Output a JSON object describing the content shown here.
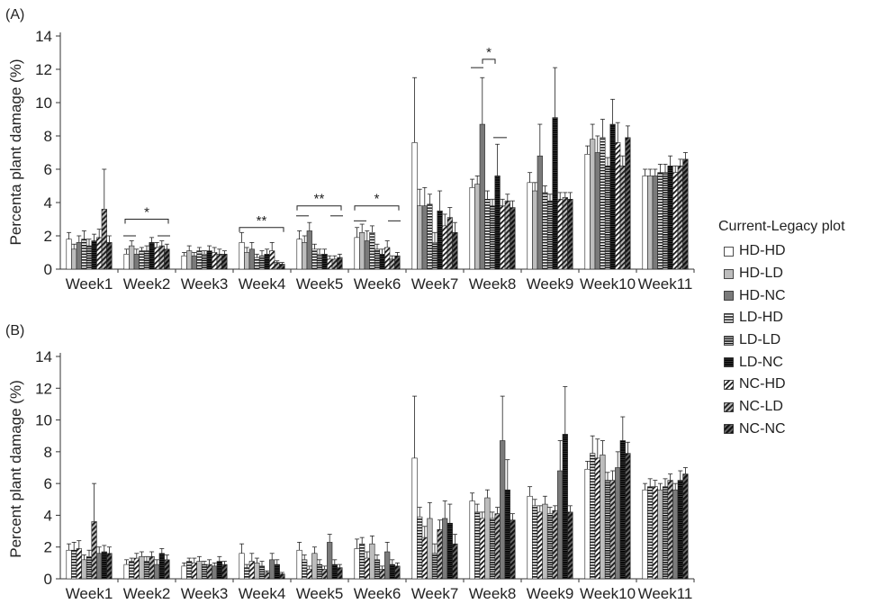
{
  "panel_labels": [
    "(A)",
    "(B)"
  ],
  "legend": {
    "title": "Current-Legacy plot",
    "items": [
      "HD-HD",
      "HD-LD",
      "HD-NC",
      "LD-HD",
      "LD-LD",
      "LD-NC",
      "NC-HD",
      "NC-LD",
      "NC-NC"
    ]
  },
  "chart_data": [
    {
      "panel": "(A)",
      "type": "bar",
      "ylabel": "Percenta plant damage (%)",
      "xlabel": "",
      "ylim": [
        0,
        14
      ],
      "yticks": [
        0,
        2,
        4,
        6,
        8,
        10,
        12,
        14
      ],
      "grid": false,
      "legend_placement": "right",
      "categories": [
        "Week1",
        "Week2",
        "Week3",
        "Week4",
        "Week5",
        "Week6",
        "Week7",
        "Week8",
        "Week9",
        "Week10",
        "Week11"
      ],
      "series": [
        {
          "name": "HD-HD",
          "values": [
            1.8,
            0.9,
            0.8,
            1.6,
            1.8,
            1.9,
            7.6,
            4.9,
            5.2,
            6.9,
            5.6
          ],
          "errors": [
            0.4,
            0.3,
            0.2,
            0.6,
            0.5,
            0.6,
            3.9,
            0.5,
            0.6,
            0.5,
            0.4
          ]
        },
        {
          "name": "HD-LD",
          "values": [
            1.2,
            1.4,
            1.1,
            1.0,
            1.6,
            2.2,
            3.8,
            5.1,
            4.7,
            7.8,
            5.6
          ],
          "errors": [
            0.3,
            0.3,
            0.3,
            0.3,
            0.4,
            0.5,
            1.0,
            0.5,
            0.5,
            0.9,
            0.4
          ]
        },
        {
          "name": "HD-NC",
          "values": [
            1.6,
            0.9,
            0.8,
            1.2,
            2.3,
            1.7,
            3.8,
            8.7,
            6.8,
            7.0,
            5.6
          ],
          "errors": [
            0.4,
            0.3,
            0.2,
            0.4,
            0.5,
            0.6,
            1.1,
            2.8,
            1.9,
            1.0,
            0.4
          ]
        },
        {
          "name": "LD-HD",
          "values": [
            1.8,
            1.1,
            1.1,
            0.7,
            1.2,
            2.2,
            3.9,
            4.2,
            4.6,
            7.9,
            5.8
          ],
          "errors": [
            0.5,
            0.2,
            0.2,
            0.2,
            0.3,
            0.4,
            0.6,
            0.5,
            0.4,
            1.1,
            0.5
          ]
        },
        {
          "name": "LD-LD",
          "values": [
            1.4,
            1.1,
            0.9,
            0.8,
            0.9,
            1.2,
            1.6,
            3.8,
            4.1,
            6.2,
            5.8
          ],
          "errors": [
            0.4,
            0.3,
            0.2,
            0.3,
            0.3,
            0.3,
            0.6,
            0.4,
            0.4,
            0.5,
            0.5
          ]
        },
        {
          "name": "LD-NC",
          "values": [
            1.7,
            1.6,
            1.1,
            0.9,
            0.9,
            0.9,
            3.5,
            5.6,
            9.1,
            8.7,
            6.2
          ],
          "errors": [
            0.4,
            0.3,
            0.3,
            0.3,
            0.3,
            0.3,
            1.2,
            1.9,
            3.0,
            1.5,
            0.6
          ]
        },
        {
          "name": "NC-HD",
          "values": [
            1.9,
            1.3,
            1.0,
            1.1,
            0.6,
            1.3,
            2.6,
            3.8,
            4.2,
            7.6,
            5.8
          ],
          "errors": [
            0.5,
            0.3,
            0.3,
            0.5,
            0.2,
            0.4,
            0.7,
            0.4,
            0.4,
            1.2,
            0.4
          ]
        },
        {
          "name": "NC-LD",
          "values": [
            3.6,
            1.4,
            0.9,
            0.4,
            0.6,
            0.6,
            3.1,
            4.1,
            4.3,
            6.2,
            6.2
          ],
          "errors": [
            2.4,
            0.3,
            0.3,
            0.1,
            0.2,
            0.2,
            0.6,
            0.4,
            0.3,
            0.6,
            0.4
          ]
        },
        {
          "name": "NC-NC",
          "values": [
            1.6,
            1.2,
            0.9,
            0.3,
            0.7,
            0.8,
            2.2,
            3.7,
            4.2,
            7.9,
            6.6
          ],
          "errors": [
            0.4,
            0.3,
            0.2,
            0.1,
            0.2,
            0.2,
            0.6,
            0.4,
            0.4,
            0.7,
            0.4
          ]
        }
      ],
      "annotations": [
        "*",
        "**",
        "**",
        "*",
        "*"
      ]
    },
    {
      "panel": "(B)",
      "type": "bar",
      "ylabel": "Percent plant damage (%)",
      "xlabel": "",
      "ylim": [
        0,
        14
      ],
      "yticks": [
        0,
        2,
        4,
        6,
        8,
        10,
        12,
        14
      ],
      "grid": false,
      "categories": [
        "Week1",
        "Week2",
        "Week3",
        "Week4",
        "Week5",
        "Week6",
        "Week7",
        "Week8",
        "Week9",
        "Week10",
        "Week11"
      ],
      "series": [
        {
          "name": "HD-HD",
          "values": [
            1.8,
            0.9,
            0.8,
            1.6,
            1.8,
            1.9,
            7.6,
            4.9,
            5.2,
            6.9,
            5.6
          ],
          "errors": [
            0.4,
            0.3,
            0.2,
            0.6,
            0.5,
            0.6,
            3.9,
            0.5,
            0.6,
            0.5,
            0.4
          ]
        },
        {
          "name": "LD-HD",
          "values": [
            1.8,
            1.1,
            1.1,
            0.7,
            1.2,
            2.2,
            3.9,
            4.2,
            4.6,
            7.9,
            5.8
          ],
          "errors": [
            0.5,
            0.2,
            0.2,
            0.2,
            0.3,
            0.4,
            0.6,
            0.5,
            0.4,
            1.1,
            0.5
          ]
        },
        {
          "name": "NC-HD",
          "values": [
            1.9,
            1.3,
            1.0,
            1.1,
            0.6,
            1.3,
            2.6,
            3.8,
            4.2,
            7.6,
            5.8
          ],
          "errors": [
            0.5,
            0.3,
            0.3,
            0.5,
            0.2,
            0.4,
            0.7,
            0.4,
            0.4,
            1.2,
            0.4
          ]
        },
        {
          "name": "HD-LD",
          "values": [
            1.2,
            1.4,
            1.1,
            1.0,
            1.6,
            2.2,
            3.8,
            5.1,
            4.7,
            7.8,
            5.6
          ],
          "errors": [
            0.3,
            0.3,
            0.3,
            0.3,
            0.4,
            0.5,
            1.0,
            0.5,
            0.5,
            0.9,
            0.4
          ]
        },
        {
          "name": "LD-LD",
          "values": [
            1.4,
            1.1,
            0.9,
            0.8,
            0.9,
            1.2,
            1.6,
            3.8,
            4.1,
            6.2,
            5.8
          ],
          "errors": [
            0.4,
            0.3,
            0.2,
            0.3,
            0.3,
            0.3,
            0.6,
            0.4,
            0.4,
            0.5,
            0.5
          ]
        },
        {
          "name": "NC-LD",
          "values": [
            3.6,
            1.4,
            0.9,
            0.4,
            0.6,
            0.6,
            3.1,
            4.1,
            4.3,
            6.2,
            6.2
          ],
          "errors": [
            2.4,
            0.3,
            0.3,
            0.1,
            0.2,
            0.2,
            0.6,
            0.4,
            0.3,
            0.6,
            0.4
          ]
        },
        {
          "name": "HD-NC",
          "values": [
            1.6,
            0.9,
            0.8,
            1.2,
            2.3,
            1.7,
            3.8,
            8.7,
            6.8,
            7.0,
            5.6
          ],
          "errors": [
            0.4,
            0.3,
            0.2,
            0.4,
            0.5,
            0.6,
            1.1,
            2.8,
            1.9,
            1.0,
            0.4
          ]
        },
        {
          "name": "LD-NC",
          "values": [
            1.7,
            1.6,
            1.1,
            0.9,
            0.9,
            0.9,
            3.5,
            5.6,
            9.1,
            8.7,
            6.2
          ],
          "errors": [
            0.4,
            0.3,
            0.3,
            0.3,
            0.3,
            0.3,
            1.2,
            1.9,
            3.0,
            1.5,
            0.6
          ]
        },
        {
          "name": "NC-NC",
          "values": [
            1.6,
            1.2,
            0.9,
            0.3,
            0.7,
            0.8,
            2.2,
            3.7,
            4.2,
            7.9,
            6.6
          ],
          "errors": [
            0.4,
            0.3,
            0.2,
            0.1,
            0.2,
            0.2,
            0.6,
            0.4,
            0.4,
            0.7,
            0.4
          ]
        }
      ]
    }
  ]
}
